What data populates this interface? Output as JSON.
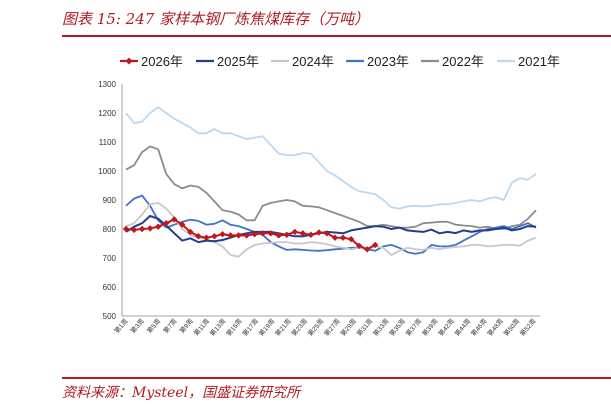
{
  "figure_title": "图表 15:  247 家样本钢厂炼焦煤库存（万吨）",
  "source_note": "资料来源：Mysteel，国盛证券研究所",
  "chart_data": {
    "type": "line",
    "title": "",
    "xlabel": "",
    "ylabel": "",
    "ylim": [
      500,
      1300
    ],
    "yticks": [
      500,
      600,
      700,
      800,
      900,
      1000,
      1100,
      1200,
      1300
    ],
    "grid": false,
    "legend_position": "top",
    "x_tick_labels": [
      "第1周",
      "第3周",
      "第5周",
      "第7周",
      "第9周",
      "第11周",
      "第13周",
      "第15周",
      "第17周",
      "第19周",
      "第21周",
      "第23周",
      "第25周",
      "第27周",
      "第29周",
      "第31周",
      "第33周",
      "第35周",
      "第37周",
      "第39周",
      "第42周",
      "第44周",
      "第46周",
      "第48周",
      "第50周",
      "第52周"
    ],
    "series": [
      {
        "name": "2026年",
        "color": "#c0161c",
        "marker": "diamond",
        "values": [
          800,
          797,
          800,
          802,
          808,
          820,
          833,
          815,
          790,
          775,
          770,
          775,
          782,
          778,
          778,
          778,
          782,
          785,
          785,
          778,
          780,
          790,
          785,
          780,
          788,
          785,
          770,
          770,
          765,
          742,
          730,
          745
        ]
      },
      {
        "name": "2025年",
        "color": "#1f3f8f",
        "values": [
          790,
          808,
          820,
          845,
          835,
          812,
          785,
          760,
          768,
          755,
          760,
          758,
          762,
          770,
          780,
          785,
          790,
          790,
          790,
          785,
          780,
          775,
          775,
          780,
          785,
          790,
          788,
          785,
          795,
          800,
          805,
          810,
          808,
          800,
          805,
          795,
          792,
          790,
          798,
          785,
          790,
          786,
          795,
          790,
          795,
          795,
          800,
          805,
          795,
          800,
          810,
          808
        ]
      },
      {
        "name": "2024年",
        "color": "#c8c8c8",
        "values": [
          810,
          820,
          850,
          885,
          890,
          870,
          840,
          800,
          780,
          770,
          765,
          755,
          740,
          710,
          705,
          730,
          745,
          750,
          752,
          755,
          755,
          750,
          750,
          755,
          752,
          748,
          740,
          735,
          730,
          735,
          730,
          740,
          735,
          710,
          725,
          735,
          730,
          728,
          735,
          730,
          735,
          738,
          740,
          745,
          745,
          740,
          742,
          745,
          745,
          742,
          760,
          770
        ]
      },
      {
        "name": "2023年",
        "color": "#4472c4",
        "values": [
          880,
          905,
          915,
          880,
          830,
          805,
          815,
          825,
          832,
          828,
          815,
          818,
          830,
          815,
          810,
          800,
          790,
          780,
          755,
          740,
          728,
          730,
          728,
          726,
          725,
          727,
          730,
          732,
          735,
          735,
          730,
          725,
          740,
          745,
          735,
          720,
          715,
          720,
          745,
          740,
          740,
          745,
          760,
          775,
          790,
          800,
          805,
          810,
          800,
          810,
          820,
          805
        ]
      },
      {
        "name": "2022年",
        "color": "#8c8c8c",
        "values": [
          1005,
          1020,
          1065,
          1085,
          1075,
          990,
          955,
          940,
          950,
          945,
          925,
          895,
          865,
          860,
          850,
          830,
          830,
          880,
          890,
          895,
          900,
          895,
          880,
          878,
          875,
          865,
          855,
          845,
          835,
          825,
          810,
          810,
          815,
          810,
          805,
          805,
          808,
          820,
          822,
          825,
          825,
          815,
          812,
          810,
          805,
          808,
          800,
          800,
          810,
          815,
          835,
          865
        ]
      },
      {
        "name": "2021年",
        "color": "#bdd7ee",
        "values": [
          1200,
          1165,
          1170,
          1200,
          1220,
          1200,
          1180,
          1165,
          1150,
          1130,
          1130,
          1145,
          1130,
          1130,
          1120,
          1110,
          1115,
          1120,
          1090,
          1060,
          1055,
          1055,
          1062,
          1060,
          1030,
          1000,
          985,
          965,
          945,
          930,
          925,
          920,
          900,
          875,
          870,
          878,
          880,
          878,
          880,
          885,
          885,
          890,
          895,
          900,
          895,
          905,
          910,
          900,
          960,
          975,
          970,
          990
        ]
      }
    ]
  }
}
